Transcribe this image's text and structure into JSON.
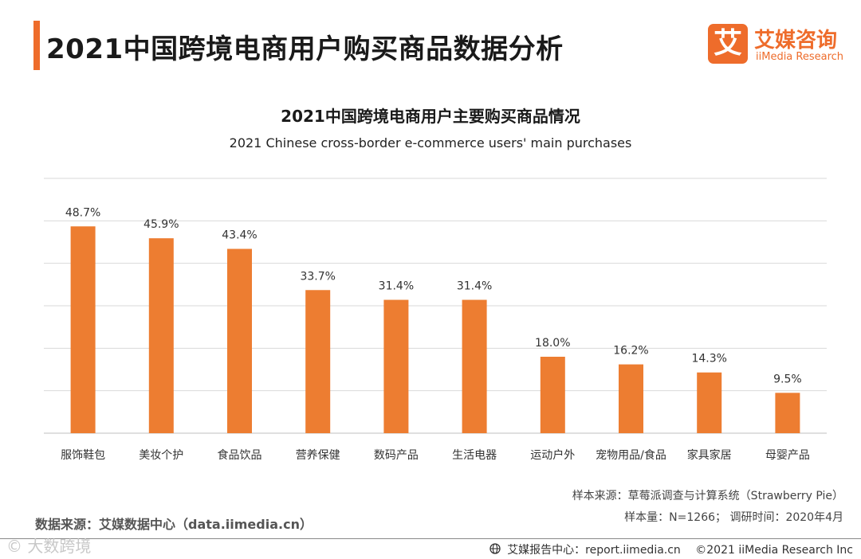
{
  "page": {
    "title": "2021中国跨境电商用户购买商品数据分析"
  },
  "logo": {
    "mark": "艾",
    "name_cn": "艾媒咨询",
    "name_en": "iiMedia Research"
  },
  "colors": {
    "accent": "#ee6c2b",
    "bar": "#ed7d31",
    "grid": "#d9d9d9"
  },
  "chart_data": {
    "type": "bar",
    "title": "2021中国跨境电商用户主要购买商品情况",
    "subtitle": "2021 Chinese cross-border e-commerce users' main purchases",
    "categories": [
      "服饰鞋包",
      "美妆个护",
      "食品饮品",
      "营养保健",
      "数码产品",
      "生活电器",
      "运动户外",
      "宠物用品/食品",
      "家具家居",
      "母婴产品"
    ],
    "values": [
      48.7,
      45.9,
      43.4,
      33.7,
      31.4,
      31.4,
      18.0,
      16.2,
      14.3,
      9.5
    ],
    "value_labels": [
      "48.7%",
      "45.9%",
      "43.4%",
      "33.7%",
      "31.4%",
      "31.4%",
      "18.0%",
      "16.2%",
      "14.3%",
      "9.5%"
    ],
    "ylim": [
      0,
      60
    ],
    "y_gridlines": [
      10,
      20,
      30,
      40,
      50,
      60
    ],
    "xlabel": "",
    "ylabel": "",
    "grid": true
  },
  "notes": {
    "sample_source": "样本来源：草莓派调查与计算系统（Strawberry Pie）",
    "sample_size": "样本量：N=1266；  调研时间：2020年4月",
    "data_source": "数据来源：艾媒数据中心（data.iimedia.cn）"
  },
  "footer": {
    "report_center": "艾媒报告中心：report.iimedia.cn",
    "copyright": "©2021  iiMedia Research  Inc",
    "watermark": "© 大数跨境",
    "globe_icon": "globe-icon"
  }
}
